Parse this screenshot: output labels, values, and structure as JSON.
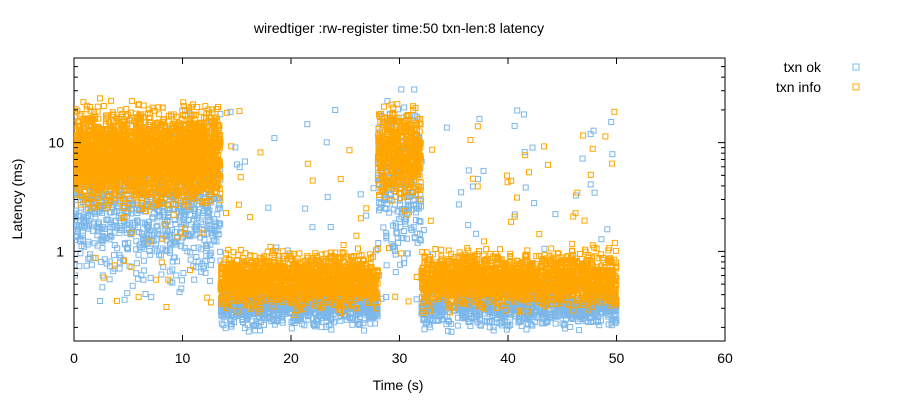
{
  "chart_data": {
    "type": "scatter",
    "title": "wiredtiger :rw-register time:50 txn-len:8 latency",
    "xlabel": "Time (s)",
    "ylabel": "Latency (ms)",
    "xlim": [
      0,
      60
    ],
    "ylim": [
      0.15,
      60
    ],
    "yscale": "log",
    "x_ticks": [
      "0",
      "10",
      "20",
      "30",
      "40",
      "50",
      "60"
    ],
    "y_ticks": [
      "1",
      "10"
    ],
    "grid": false,
    "legend_position": "top-right-outside",
    "series": [
      {
        "name": "txn ok",
        "color": "#7cb7ea",
        "marker": "open-square",
        "regions": [
          {
            "x_range": [
              0,
              13.5
            ],
            "y_range": [
              0.3,
              25
            ],
            "density": 900
          },
          {
            "x_range": [
              13.5,
              28
            ],
            "y_range": [
              0.17,
              0.6
            ],
            "density": 900
          },
          {
            "x_range": [
              28,
              32
            ],
            "y_range": [
              0.4,
              40
            ],
            "density": 250
          },
          {
            "x_range": [
              32,
              50
            ],
            "y_range": [
              0.17,
              0.6
            ],
            "density": 1000
          }
        ]
      },
      {
        "name": "txn info",
        "color": "#ffa500",
        "marker": "open-square",
        "regions": [
          {
            "x_range": [
              0,
              13.5
            ],
            "y_range": [
              2,
              28
            ],
            "density": 2600
          },
          {
            "x_range": [
              13.5,
              28
            ],
            "y_range": [
              0.25,
              1.2
            ],
            "density": 1500
          },
          {
            "x_range": [
              28,
              32
            ],
            "y_range": [
              2,
              30
            ],
            "density": 500
          },
          {
            "x_range": [
              32,
              50
            ],
            "y_range": [
              0.25,
              1.2
            ],
            "density": 1700
          }
        ]
      }
    ]
  }
}
